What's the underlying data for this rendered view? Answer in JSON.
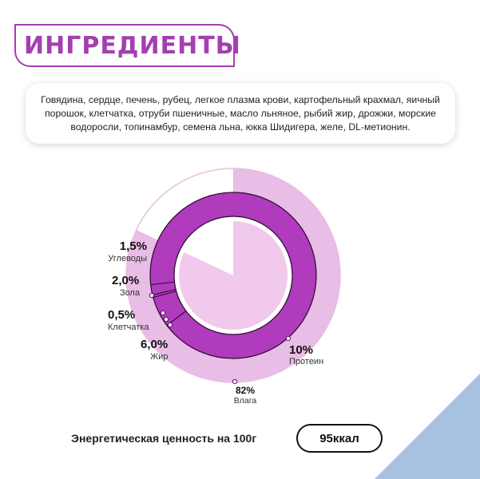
{
  "header": {
    "title": "ИНГРЕДИЕНТЫ"
  },
  "ingredients": {
    "line1": "Говядина, сердце, печень, рубец, легкое плазма крови, картофельный крахмал, яичный",
    "line2": "порошок, клетчатка, отруби пшеничные,  масло льняное, рыбий жир, дрожжи, морские",
    "line3": "водоросли, топинамбур, семена льна, юкка Шидигера, желе, DL-метионин."
  },
  "composition": {
    "protein": {
      "pct": "10%",
      "name": "Протеин"
    },
    "fat": {
      "pct": "6,0%",
      "name": "Жир"
    },
    "fiber": {
      "pct": "0,5%",
      "name": "Клетчатка"
    },
    "ash": {
      "pct": "2,0%",
      "name": "Зола"
    },
    "carbohydrates": {
      "pct": "1,5%",
      "name": "Углеводы"
    },
    "moisture": {
      "pct": "82%",
      "name": "Влага"
    }
  },
  "energy": {
    "label": "Энергетическая ценность на 100г",
    "value": "95ккал"
  },
  "chart_data": {
    "type": "pie",
    "rings": [
      {
        "name": "outer",
        "values": [
          {
            "label": "Влага",
            "value": 82
          }
        ]
      },
      {
        "name": "inner",
        "values": [
          {
            "label": "Протеин",
            "value": 10
          },
          {
            "label": "Жир",
            "value": 6.0
          },
          {
            "label": "Клетчатка",
            "value": 0.5
          },
          {
            "label": "Зола",
            "value": 2.0
          },
          {
            "label": "Углеводы",
            "value": 1.5
          }
        ]
      }
    ]
  },
  "colors": {
    "accent": "#a43fb0",
    "ring_fill": "#b03bbc",
    "outer_fill": "#e8bde6",
    "center_fill": "#f0c9ec",
    "corner": "#a7c1e0"
  }
}
